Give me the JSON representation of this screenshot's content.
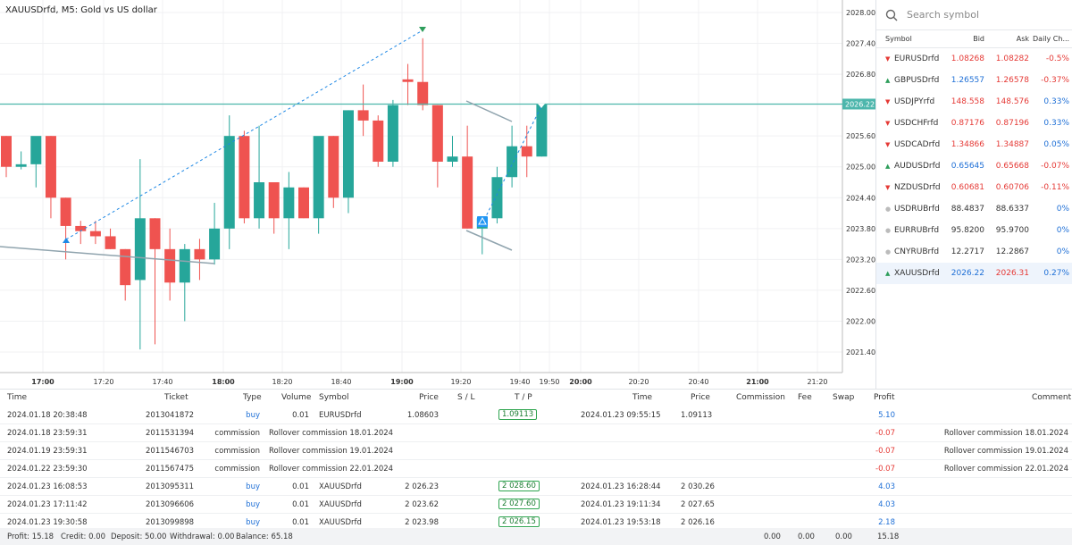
{
  "chart": {
    "title": "XAUUSDrfd, M5: Gold vs US dollar",
    "price_labels": [
      "2028.00",
      "2027.40",
      "2026.80",
      "2026.22",
      "2025.60",
      "2025.00",
      "2024.40",
      "2023.80",
      "2023.20",
      "2022.60",
      "2022.00",
      "2021.40"
    ],
    "current_price": "2026.22",
    "time_labels": [
      "17:00",
      "17:20",
      "17:40",
      "18:00",
      "18:20",
      "18:40",
      "19:00",
      "19:20",
      "19:40",
      "19:50",
      "20:00",
      "20:20",
      "20:40",
      "21:00",
      "21:20"
    ],
    "bold_times": [
      "17:00",
      "18:00",
      "19:00",
      "20:00",
      "21:00"
    ],
    "colors": {
      "up": "#26a69a",
      "down": "#ef5350",
      "priceline": "#4db6ac",
      "trade": "#1e88e5"
    }
  },
  "watchlist": {
    "search_placeholder": "Search symbol",
    "headers": {
      "symbol": "Symbol",
      "bid": "Bid",
      "ask": "Ask",
      "change": "Daily Ch..."
    },
    "rows": [
      {
        "symbol": "EURUSDrfd",
        "bid": "1.08268",
        "ask": "1.08282",
        "change": "-0.5%",
        "dir": "down"
      },
      {
        "symbol": "GBPUSDrfd",
        "bid": "1.26557",
        "ask": "1.26578",
        "change": "-0.37%",
        "dir": "up"
      },
      {
        "symbol": "USDJPYrfd",
        "bid": "148.558",
        "ask": "148.576",
        "change": "0.33%",
        "dir": "down"
      },
      {
        "symbol": "USDCHFrfd",
        "bid": "0.87176",
        "ask": "0.87196",
        "change": "0.33%",
        "dir": "down"
      },
      {
        "symbol": "USDCADrfd",
        "bid": "1.34866",
        "ask": "1.34887",
        "change": "0.05%",
        "dir": "down"
      },
      {
        "symbol": "AUDUSDrfd",
        "bid": "0.65645",
        "ask": "0.65668",
        "change": "-0.07%",
        "dir": "up"
      },
      {
        "symbol": "NZDUSDrfd",
        "bid": "0.60681",
        "ask": "0.60706",
        "change": "-0.11%",
        "dir": "down"
      },
      {
        "symbol": "USDRUBrfd",
        "bid": "88.4837",
        "ask": "88.6337",
        "change": "0%",
        "dir": "none"
      },
      {
        "symbol": "EURRUBrfd",
        "bid": "95.8200",
        "ask": "95.9700",
        "change": "0%",
        "dir": "none"
      },
      {
        "symbol": "CNYRUBrfd",
        "bid": "12.2717",
        "ask": "12.2867",
        "change": "0%",
        "dir": "none"
      },
      {
        "symbol": "XAUUSDrfd",
        "bid": "2026.22",
        "ask": "2026.31",
        "change": "0.27%",
        "dir": "up"
      }
    ]
  },
  "history": {
    "headers": {
      "time": "Time",
      "ticket": "Ticket",
      "type": "Type",
      "volume": "Volume",
      "symbol": "Symbol",
      "price": "Price",
      "sl": "S / L",
      "tp": "T / P",
      "time2": "Time",
      "price2": "Price",
      "commission": "Commission",
      "fee": "Fee",
      "swap": "Swap",
      "profit": "Profit",
      "comment": "Comment"
    },
    "rows": [
      {
        "time": "2024.01.18 20:38:48",
        "ticket": "2013041872",
        "type": "buy",
        "volume": "0.01",
        "symbol": "EURUSDrfd",
        "price": "1.08603",
        "tp": "1.09113",
        "time2": "2024.01.23 09:55:15",
        "price2": "1.09113",
        "profit": "5.10",
        "comment": ""
      },
      {
        "time": "2024.01.18 23:59:31",
        "ticket": "2011531394",
        "type": "commission",
        "volume": "",
        "symbol": "Rollover commission 18.01.2024",
        "price": "",
        "tp": "",
        "time2": "",
        "price2": "",
        "profit": "-0.07",
        "comment": "Rollover commission 18.01.2024"
      },
      {
        "time": "2024.01.19 23:59:31",
        "ticket": "2011546703",
        "type": "commission",
        "volume": "",
        "symbol": "Rollover commission 19.01.2024",
        "price": "",
        "tp": "",
        "time2": "",
        "price2": "",
        "profit": "-0.07",
        "comment": "Rollover commission 19.01.2024"
      },
      {
        "time": "2024.01.22 23:59:30",
        "ticket": "2011567475",
        "type": "commission",
        "volume": "",
        "symbol": "Rollover commission 22.01.2024",
        "price": "",
        "tp": "",
        "time2": "",
        "price2": "",
        "profit": "-0.07",
        "comment": "Rollover commission 22.01.2024"
      },
      {
        "time": "2024.01.23 16:08:53",
        "ticket": "2013095311",
        "type": "buy",
        "volume": "0.01",
        "symbol": "XAUUSDrfd",
        "price": "2 026.23",
        "tp": "2 028.60",
        "time2": "2024.01.23 16:28:44",
        "price2": "2 030.26",
        "profit": "4.03",
        "comment": ""
      },
      {
        "time": "2024.01.23 17:11:42",
        "ticket": "2013096606",
        "type": "buy",
        "volume": "0.01",
        "symbol": "XAUUSDrfd",
        "price": "2 023.62",
        "tp": "2 027.60",
        "time2": "2024.01.23 19:11:34",
        "price2": "2 027.65",
        "profit": "4.03",
        "comment": ""
      },
      {
        "time": "2024.01.23 19:30:58",
        "ticket": "2013099898",
        "type": "buy",
        "volume": "0.01",
        "symbol": "XAUUSDrfd",
        "price": "2 023.98",
        "tp": "2 026.15",
        "time2": "2024.01.23 19:53:18",
        "price2": "2 026.16",
        "profit": "2.18",
        "comment": ""
      }
    ]
  },
  "status": {
    "profit": "Profit: 15.18",
    "credit": "Credit: 0.00",
    "deposit": "Deposit: 50.00",
    "withdrawal": "Withdrawal: 0.00",
    "balance": "Balance: 65.18",
    "commission_total": "0.00",
    "fee_total": "0.00",
    "swap_total": "0.00",
    "profit_total": "15.18"
  }
}
